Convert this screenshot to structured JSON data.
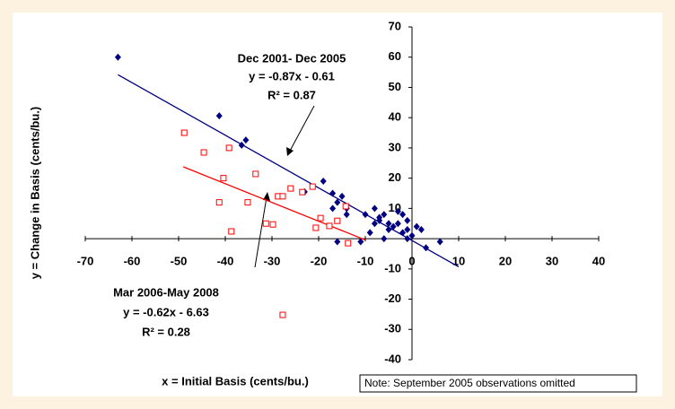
{
  "chart_data": {
    "type": "scatter",
    "x_label": "x = Initial Basis (cents/bu.)",
    "y_label": "y = Change in Basis (cents/bu.)",
    "xlim": [
      -70,
      40
    ],
    "ylim": [
      -40,
      70
    ],
    "xticks": [
      -70,
      -60,
      -50,
      -40,
      -30,
      -20,
      -10,
      0,
      10,
      20,
      30,
      40
    ],
    "yticks": [
      -40,
      -30,
      -20,
      -10,
      10,
      20,
      30,
      40,
      50,
      60,
      70
    ],
    "grid": false,
    "series": [
      {
        "name": "Dec 2001- Dec 2005",
        "color": "#000080",
        "marker": "diamond",
        "equation": "y = -0.87x - 0.61",
        "r2": "R² = 0.87",
        "x": [
          -63,
          -41.3,
          -35.6,
          -36.5,
          -19,
          -23,
          -17,
          -15,
          -16,
          -14,
          -14,
          -17,
          -10,
          -8,
          -7,
          -6,
          -5,
          -4,
          -3,
          -2,
          -1,
          0,
          -1,
          -6,
          -11,
          -16,
          -9,
          2,
          3,
          -3,
          -2,
          6,
          -7,
          -8,
          -5,
          -1,
          1
        ],
        "values": [
          60,
          40.6,
          32.6,
          30.9,
          19,
          15.5,
          15,
          14,
          12,
          10,
          8,
          10,
          8,
          10,
          7,
          8,
          5,
          4,
          5,
          2,
          3,
          1,
          0,
          0,
          -1,
          -1,
          2,
          3,
          -3,
          9,
          8,
          -1,
          6,
          5,
          3,
          6,
          4
        ],
        "trend": {
          "x": [
            -63,
            10
          ],
          "values": [
            54.2,
            -9.31
          ]
        }
      },
      {
        "name": "Mar 2006-May 2008",
        "color": "#ff0000",
        "marker": "square",
        "equation": "y = -0.62x - 6.63",
        "r2": "R² = 0.28",
        "x": [
          -48.8,
          -44.6,
          -39.2,
          -33.5,
          -40.4,
          -41.3,
          -35.2,
          -38.7,
          -31.3,
          -29.8,
          -28.7,
          -27.7,
          -26,
          -23.5,
          -21.3,
          -19.6,
          -20.6,
          -17.7,
          -16,
          -14.2,
          -13.7,
          -27.7
        ],
        "values": [
          35,
          28.5,
          30,
          21.4,
          20,
          12,
          12,
          2.4,
          5,
          4.7,
          14,
          14,
          16.6,
          15.4,
          17.2,
          6.8,
          3.6,
          4.2,
          5.9,
          10.7,
          -1.5,
          -25.2
        ],
        "trend": {
          "x": [
            -49,
            -10
          ],
          "values": [
            23.75,
            -0.43
          ]
        }
      }
    ],
    "note": "Note: September 2005 observations omitted"
  }
}
